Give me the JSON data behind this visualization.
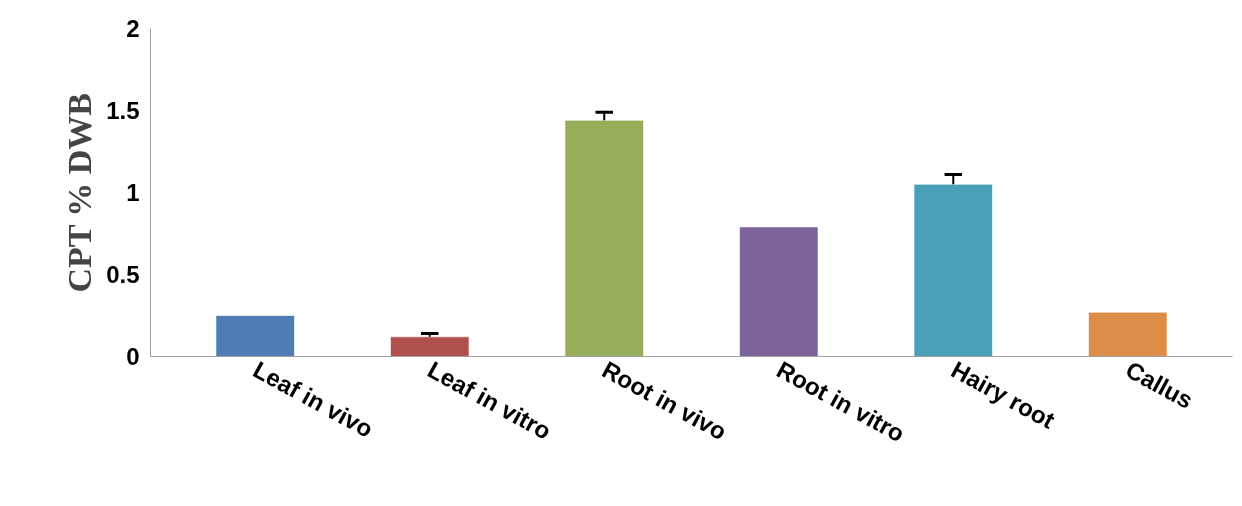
{
  "chart_data": {
    "type": "bar",
    "ylabel": "CPT % DWB",
    "categories": [
      "Leaf in vivo",
      "Leaf in vitro",
      "Root in vivo",
      "Root in vitro",
      "Hairy root",
      "Callus"
    ],
    "values": [
      0.25,
      0.12,
      1.44,
      0.79,
      1.05,
      0.27
    ],
    "colors": [
      "#4f7db3",
      "#b0504d",
      "#97ad5a",
      "#7c649a",
      "#4aa0b6",
      "#dd8d48"
    ],
    "errors": [
      null,
      [
        0.12,
        0.14
      ],
      [
        1.44,
        1.49
      ],
      null,
      [
        1.05,
        1.11
      ],
      null
    ],
    "ylim": [
      0,
      2
    ],
    "yticks": [
      0,
      0.5,
      1,
      1.5,
      2
    ],
    "grid": false
  }
}
